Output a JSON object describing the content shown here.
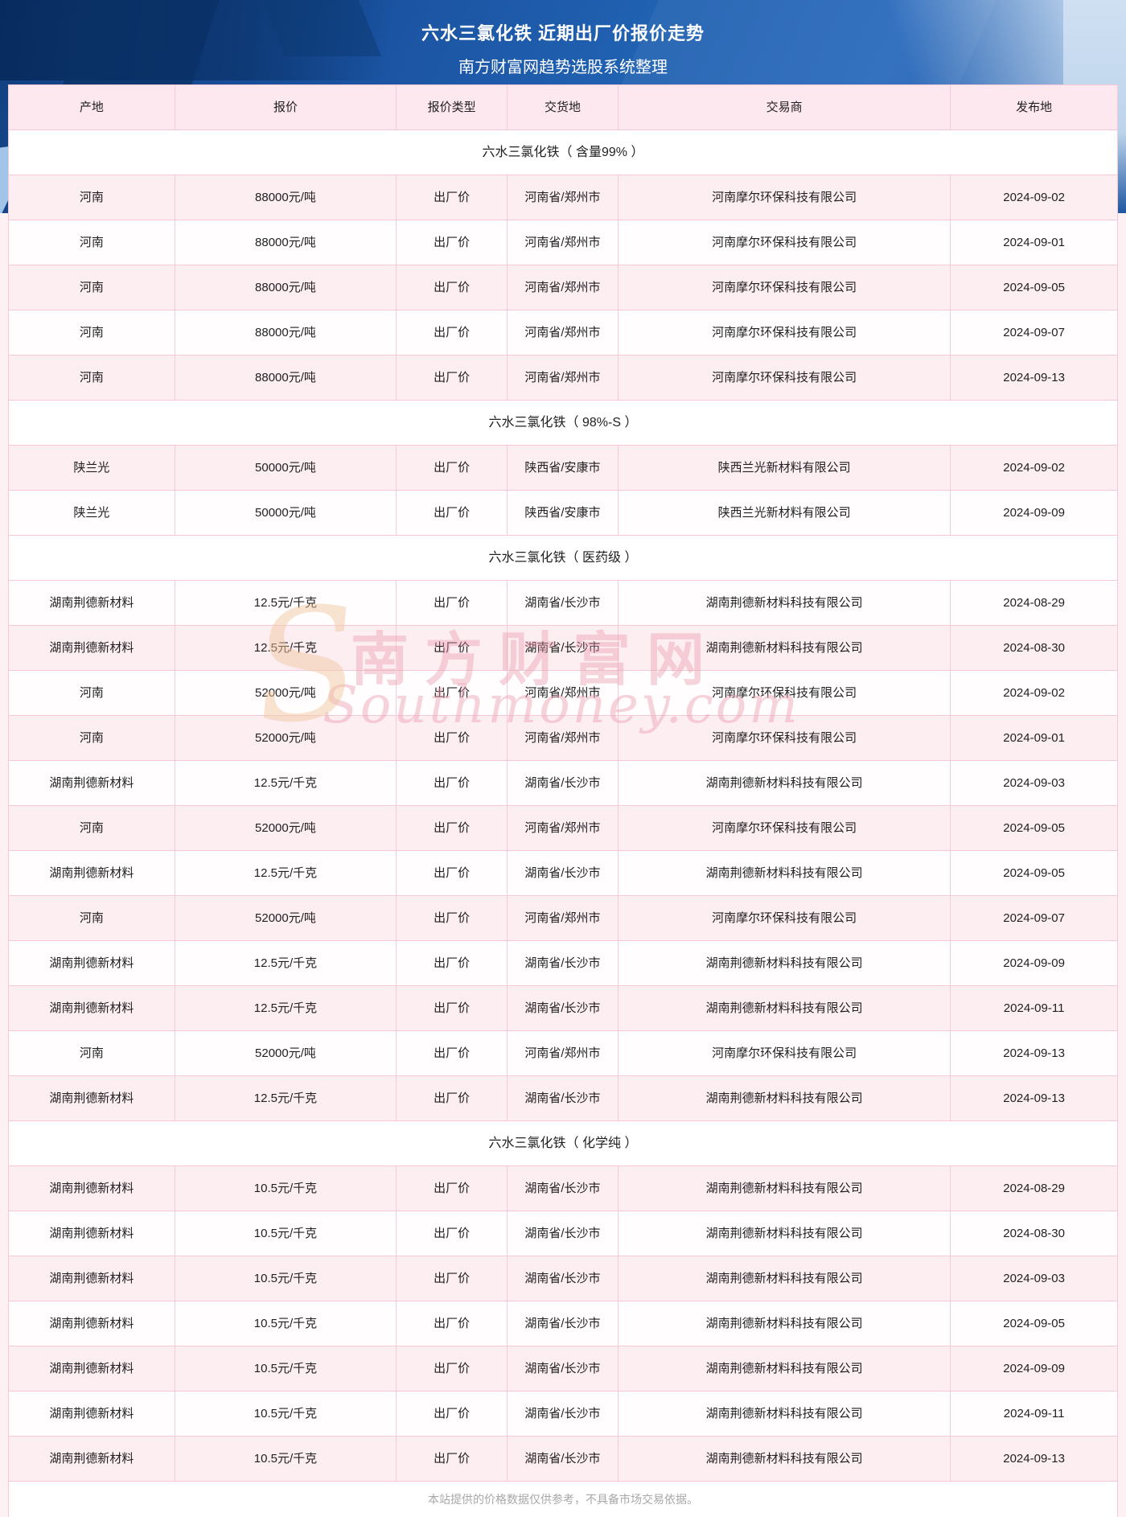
{
  "header": {
    "title": "六水三氯化铁 近期出厂价报价走势",
    "subtitle": "南方财富网趋势选股系统整理"
  },
  "table": {
    "columns": [
      "产地",
      "报价",
      "报价类型",
      "交货地",
      "交易商",
      "发布地"
    ],
    "column_keys": [
      "origin",
      "price",
      "price-type",
      "delivery-place",
      "trader",
      "publish-date"
    ],
    "sections": [
      {
        "title": "六水三氯化铁（ 含量99% ）",
        "rows": [
          [
            "河南",
            "88000元/吨",
            "出厂价",
            "河南省/郑州市",
            "河南摩尔环保科技有限公司",
            "2024-09-02"
          ],
          [
            "河南",
            "88000元/吨",
            "出厂价",
            "河南省/郑州市",
            "河南摩尔环保科技有限公司",
            "2024-09-01"
          ],
          [
            "河南",
            "88000元/吨",
            "出厂价",
            "河南省/郑州市",
            "河南摩尔环保科技有限公司",
            "2024-09-05"
          ],
          [
            "河南",
            "88000元/吨",
            "出厂价",
            "河南省/郑州市",
            "河南摩尔环保科技有限公司",
            "2024-09-07"
          ],
          [
            "河南",
            "88000元/吨",
            "出厂价",
            "河南省/郑州市",
            "河南摩尔环保科技有限公司",
            "2024-09-13"
          ]
        ]
      },
      {
        "title": "六水三氯化铁（ 98%-S ）",
        "rows": [
          [
            "陕兰光",
            "50000元/吨",
            "出厂价",
            "陕西省/安康市",
            "陕西兰光新材料有限公司",
            "2024-09-02"
          ],
          [
            "陕兰光",
            "50000元/吨",
            "出厂价",
            "陕西省/安康市",
            "陕西兰光新材料有限公司",
            "2024-09-09"
          ]
        ]
      },
      {
        "title": "六水三氯化铁（ 医药级 ）",
        "rows": [
          [
            "湖南荆德新材料",
            "12.5元/千克",
            "出厂价",
            "湖南省/长沙市",
            "湖南荆德新材料科技有限公司",
            "2024-08-29"
          ],
          [
            "湖南荆德新材料",
            "12.5元/千克",
            "出厂价",
            "湖南省/长沙市",
            "湖南荆德新材料科技有限公司",
            "2024-08-30"
          ],
          [
            "河南",
            "52000元/吨",
            "出厂价",
            "河南省/郑州市",
            "河南摩尔环保科技有限公司",
            "2024-09-02"
          ],
          [
            "河南",
            "52000元/吨",
            "出厂价",
            "河南省/郑州市",
            "河南摩尔环保科技有限公司",
            "2024-09-01"
          ],
          [
            "湖南荆德新材料",
            "12.5元/千克",
            "出厂价",
            "湖南省/长沙市",
            "湖南荆德新材料科技有限公司",
            "2024-09-03"
          ],
          [
            "河南",
            "52000元/吨",
            "出厂价",
            "河南省/郑州市",
            "河南摩尔环保科技有限公司",
            "2024-09-05"
          ],
          [
            "湖南荆德新材料",
            "12.5元/千克",
            "出厂价",
            "湖南省/长沙市",
            "湖南荆德新材料科技有限公司",
            "2024-09-05"
          ],
          [
            "河南",
            "52000元/吨",
            "出厂价",
            "河南省/郑州市",
            "河南摩尔环保科技有限公司",
            "2024-09-07"
          ],
          [
            "湖南荆德新材料",
            "12.5元/千克",
            "出厂价",
            "湖南省/长沙市",
            "湖南荆德新材料科技有限公司",
            "2024-09-09"
          ],
          [
            "湖南荆德新材料",
            "12.5元/千克",
            "出厂价",
            "湖南省/长沙市",
            "湖南荆德新材料科技有限公司",
            "2024-09-11"
          ],
          [
            "河南",
            "52000元/吨",
            "出厂价",
            "河南省/郑州市",
            "河南摩尔环保科技有限公司",
            "2024-09-13"
          ],
          [
            "湖南荆德新材料",
            "12.5元/千克",
            "出厂价",
            "湖南省/长沙市",
            "湖南荆德新材料科技有限公司",
            "2024-09-13"
          ]
        ]
      },
      {
        "title": "六水三氯化铁（ 化学纯 ）",
        "rows": [
          [
            "湖南荆德新材料",
            "10.5元/千克",
            "出厂价",
            "湖南省/长沙市",
            "湖南荆德新材料科技有限公司",
            "2024-08-29"
          ],
          [
            "湖南荆德新材料",
            "10.5元/千克",
            "出厂价",
            "湖南省/长沙市",
            "湖南荆德新材料科技有限公司",
            "2024-08-30"
          ],
          [
            "湖南荆德新材料",
            "10.5元/千克",
            "出厂价",
            "湖南省/长沙市",
            "湖南荆德新材料科技有限公司",
            "2024-09-03"
          ],
          [
            "湖南荆德新材料",
            "10.5元/千克",
            "出厂价",
            "湖南省/长沙市",
            "湖南荆德新材料科技有限公司",
            "2024-09-05"
          ],
          [
            "湖南荆德新材料",
            "10.5元/千克",
            "出厂价",
            "湖南省/长沙市",
            "湖南荆德新材料科技有限公司",
            "2024-09-09"
          ],
          [
            "湖南荆德新材料",
            "10.5元/千克",
            "出厂价",
            "湖南省/长沙市",
            "湖南荆德新材料科技有限公司",
            "2024-09-11"
          ],
          [
            "湖南荆德新材料",
            "10.5元/千克",
            "出厂价",
            "湖南省/长沙市",
            "湖南荆德新材料科技有限公司",
            "2024-09-13"
          ]
        ]
      }
    ],
    "footer_note": "本站提供的价格数据仅供参考，不具备市场交易依据。"
  },
  "watermark": {
    "flourish": "S",
    "cn": "南方财富网",
    "en": "Southmoney.com"
  },
  "colors": {
    "banner_blue": "#1e5cab",
    "table_border_pink": "#f7c9d6",
    "row_stripe_pink": "#fdeef2",
    "header_row_pink": "#fce8ee",
    "page_background_pink": "#fdf1f4",
    "watermark_pink": "#e996aa",
    "footer_text_gray": "#a8a8a8"
  }
}
